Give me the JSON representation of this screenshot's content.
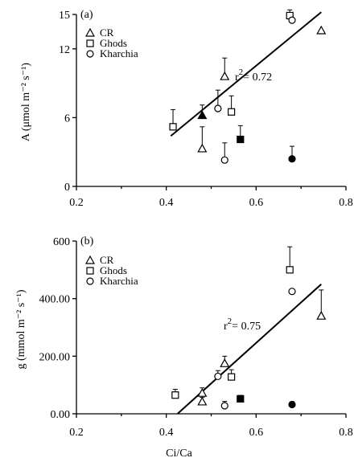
{
  "chart_data": [
    {
      "type": "scatter",
      "panel_label": "(a)",
      "ylabel": "A (μmol m⁻² s⁻¹)",
      "xlabel": "",
      "xlim": [
        0.2,
        0.8
      ],
      "ylim": [
        0,
        15
      ],
      "xticks": [
        "0.2",
        "0.4",
        "0.6",
        "0.8"
      ],
      "yticks": [
        "0",
        "6",
        "12",
        "15"
      ],
      "legend_placement": "top-left",
      "fit_label": "r",
      "fit_label_sup": "2",
      "fit_value": "= 0.72",
      "fit_line": [
        [
          0.41,
          4.4
        ],
        [
          0.745,
          15.2
        ]
      ],
      "series": [
        {
          "name": "CR",
          "marker": "triangle",
          "points": [
            {
              "x": 0.48,
              "y": 3.3,
              "err": 1.9,
              "filled": false
            },
            {
              "x": 0.48,
              "y": 6.2,
              "err": 0.9,
              "filled": true
            },
            {
              "x": 0.53,
              "y": 9.6,
              "err": 1.6,
              "filled": false
            },
            {
              "x": 0.745,
              "y": 13.6,
              "err": 0,
              "filled": false
            }
          ]
        },
        {
          "name": "Ghods",
          "marker": "square",
          "points": [
            {
              "x": 0.415,
              "y": 5.2,
              "err": 1.5,
              "filled": false
            },
            {
              "x": 0.545,
              "y": 6.5,
              "err": 1.4,
              "filled": false
            },
            {
              "x": 0.565,
              "y": 4.1,
              "err": 1.2,
              "filled": true
            },
            {
              "x": 0.675,
              "y": 14.9,
              "err": 0.5,
              "filled": false
            }
          ]
        },
        {
          "name": "Kharchia",
          "marker": "circle",
          "points": [
            {
              "x": 0.515,
              "y": 6.8,
              "err": 1.6,
              "filled": false
            },
            {
              "x": 0.53,
              "y": 2.3,
              "err": 1.5,
              "filled": false
            },
            {
              "x": 0.68,
              "y": 14.5,
              "err": 0,
              "filled": false
            },
            {
              "x": 0.68,
              "y": 2.4,
              "err": 1.1,
              "filled": true
            }
          ]
        }
      ]
    },
    {
      "type": "scatter",
      "panel_label": "(b)",
      "ylabel": "g (mmol m⁻² s⁻¹)",
      "xlabel": "Ci/Ca",
      "xlim": [
        0.2,
        0.8
      ],
      "ylim": [
        0,
        600
      ],
      "xticks": [
        "0.2",
        "0.4",
        "0.6",
        "0.8"
      ],
      "yticks": [
        "0.00",
        "200.00",
        "400.00",
        "600"
      ],
      "legend_placement": "top-left",
      "fit_label": "r",
      "fit_label_sup": "2",
      "fit_value": "= 0.75",
      "fit_line": [
        [
          0.425,
          0
        ],
        [
          0.745,
          450
        ]
      ],
      "series": [
        {
          "name": "CR",
          "marker": "triangle",
          "points": [
            {
              "x": 0.48,
              "y": 42,
              "err": 15,
              "filled": false
            },
            {
              "x": 0.48,
              "y": 72,
              "err": 18,
              "filled": false
            },
            {
              "x": 0.53,
              "y": 175,
              "err": 25,
              "filled": false
            },
            {
              "x": 0.745,
              "y": 340,
              "err": 90,
              "filled": false
            }
          ]
        },
        {
          "name": "Ghods",
          "marker": "square",
          "points": [
            {
              "x": 0.42,
              "y": 65,
              "err": 20,
              "filled": false
            },
            {
              "x": 0.545,
              "y": 128,
              "err": 25,
              "filled": false
            },
            {
              "x": 0.565,
              "y": 52,
              "err": 12,
              "filled": true
            },
            {
              "x": 0.675,
              "y": 500,
              "err": 80,
              "filled": false
            }
          ]
        },
        {
          "name": "Kharchia",
          "marker": "circle",
          "points": [
            {
              "x": 0.515,
              "y": 130,
              "err": 20,
              "filled": false
            },
            {
              "x": 0.53,
              "y": 28,
              "err": 15,
              "filled": false
            },
            {
              "x": 0.68,
              "y": 425,
              "err": 0,
              "filled": false
            },
            {
              "x": 0.68,
              "y": 32,
              "err": 10,
              "filled": true
            }
          ]
        }
      ]
    }
  ]
}
